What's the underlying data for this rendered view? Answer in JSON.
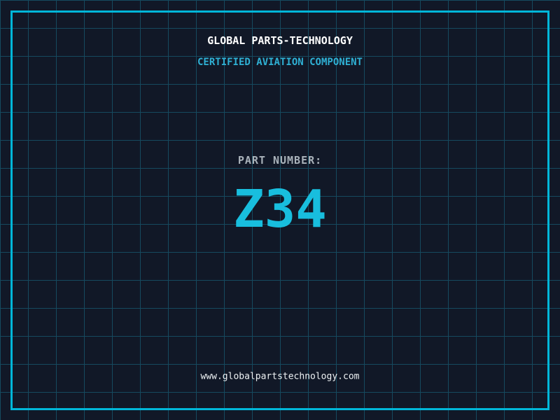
{
  "header": {
    "title": "GLOBAL PARTS-TECHNOLOGY",
    "subtitle": "CERTIFIED AVIATION COMPONENT"
  },
  "part": {
    "label": "PART NUMBER:",
    "number": "Z34"
  },
  "footer": {
    "url": "www.globalpartstechnology.com"
  },
  "colors": {
    "background": "#111827",
    "grid": "#164a5f",
    "border": "#00b6d8",
    "title": "#ffffff",
    "subtitle": "#2fb0d4",
    "label": "#a9b2ba",
    "part_number": "#18bede",
    "url": "#eef2f4"
  }
}
